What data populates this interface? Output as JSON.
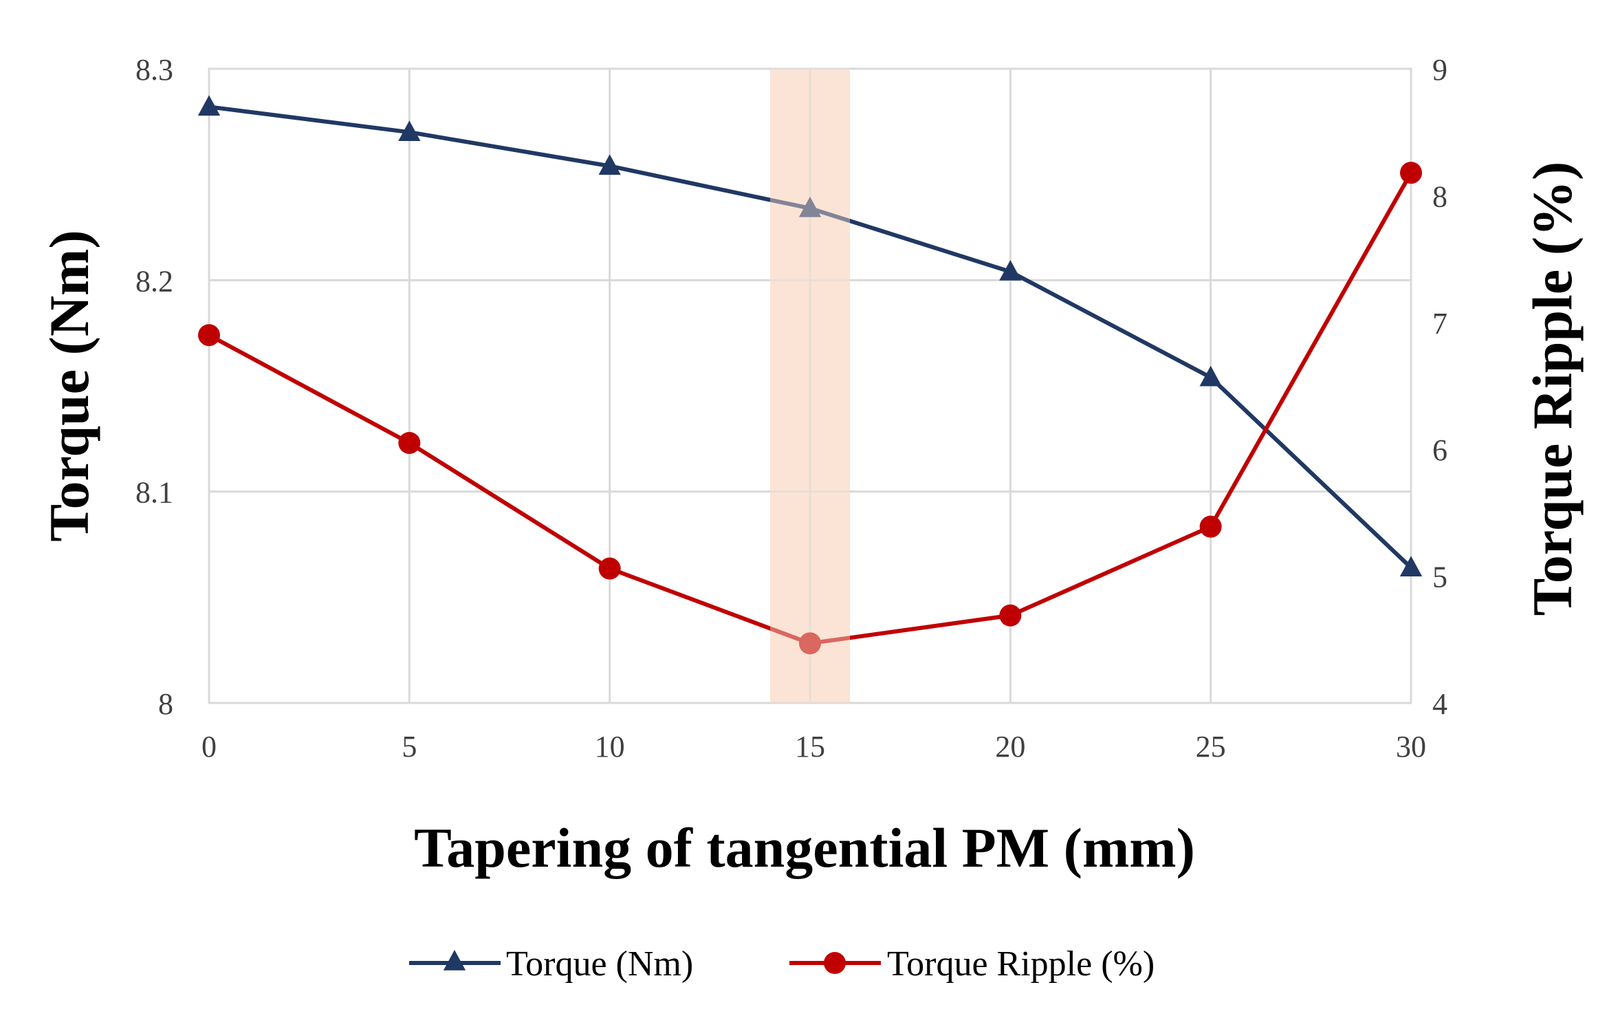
{
  "chart_data": {
    "type": "line",
    "x": [
      0,
      5,
      10,
      15,
      20,
      25,
      30
    ],
    "xlabel": "Tapering of tangential PM (mm)",
    "xlim": [
      0,
      30
    ],
    "x_ticks": [
      "0",
      "5",
      "10",
      "15",
      "20",
      "25",
      "30"
    ],
    "ylabel_left": "Torque (Nm)",
    "ylim_left": [
      8.0,
      8.3
    ],
    "y_ticks_left": [
      "8",
      "8.1",
      "8.2",
      "8.3"
    ],
    "ylabel_right": "Torque Ripple (%)",
    "ylim_right": [
      4,
      9
    ],
    "y_ticks_right": [
      "4",
      "5",
      "6",
      "7",
      "8",
      "9"
    ],
    "highlight_x": 15,
    "highlight_color": "#fbe4d5",
    "legend_position": "bottom-center",
    "grid": true,
    "series": [
      {
        "name": "Torque (Nm)",
        "axis": "left",
        "marker": "triangle",
        "color": "#203864",
        "values": [
          8.282,
          8.27,
          8.254,
          8.234,
          8.204,
          8.154,
          8.064
        ]
      },
      {
        "name": "Torque Ripple (%)",
        "axis": "right",
        "marker": "circle",
        "color": "#c00000",
        "values": [
          6.9,
          6.05,
          5.06,
          4.47,
          4.69,
          5.39,
          8.18
        ]
      }
    ]
  }
}
